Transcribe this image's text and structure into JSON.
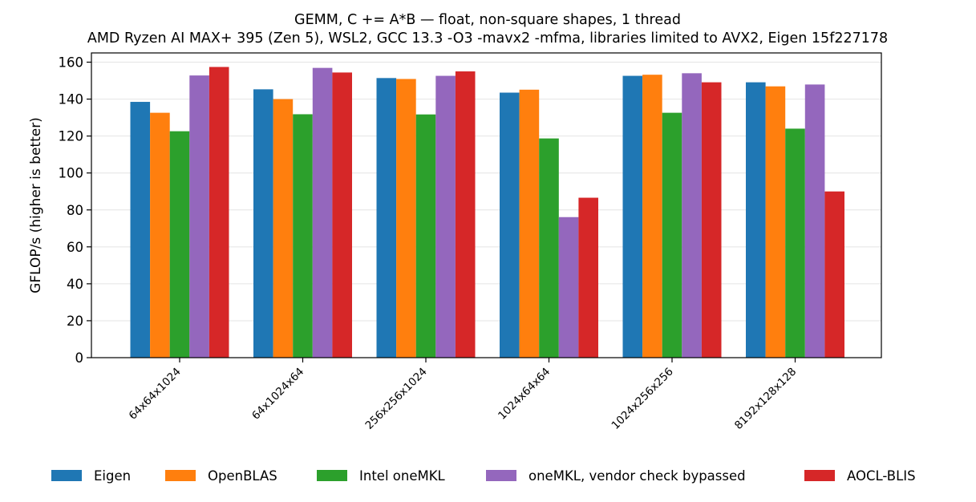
{
  "chart_data": {
    "type": "bar",
    "title_lines": [
      "GEMM, C += A*B — float, non-square shapes, 1 thread",
      "AMD Ryzen AI MAX+ 395 (Zen 5), WSL2, GCC 13.3 -O3 -mavx2 -mfma, libraries limited to AVX2, Eigen 15f227178"
    ],
    "xlabel": "",
    "ylabel": "GFLOP/s (higher is better)",
    "ylim": [
      0,
      165
    ],
    "yticks": [
      0,
      20,
      40,
      60,
      80,
      100,
      120,
      140,
      160
    ],
    "grid": "horizontal",
    "legend_position": "bottom",
    "categories": [
      "64x64x1024",
      "64x1024x64",
      "256x256x1024",
      "1024x64x64",
      "1024x256x256",
      "8192x128x128"
    ],
    "series": [
      {
        "name": "Eigen",
        "color": "#1f77b4",
        "values": [
          138.5,
          145.3,
          151.4,
          143.5,
          152.6,
          149.1
        ]
      },
      {
        "name": "OpenBLAS",
        "color": "#ff7f0e",
        "values": [
          132.6,
          140.0,
          150.9,
          145.1,
          153.2,
          146.9
        ]
      },
      {
        "name": "Intel oneMKL",
        "color": "#2ca02c",
        "values": [
          122.6,
          131.8,
          131.7,
          118.7,
          132.6,
          124.0
        ]
      },
      {
        "name": "oneMKL, vendor check bypassed",
        "color": "#9467bd",
        "values": [
          152.8,
          156.9,
          152.6,
          76.1,
          154.0,
          147.9
        ]
      },
      {
        "name": "AOCL-BLIS",
        "color": "#d62728",
        "values": [
          157.4,
          154.4,
          155.0,
          86.6,
          149.1,
          90.0
        ]
      }
    ]
  }
}
